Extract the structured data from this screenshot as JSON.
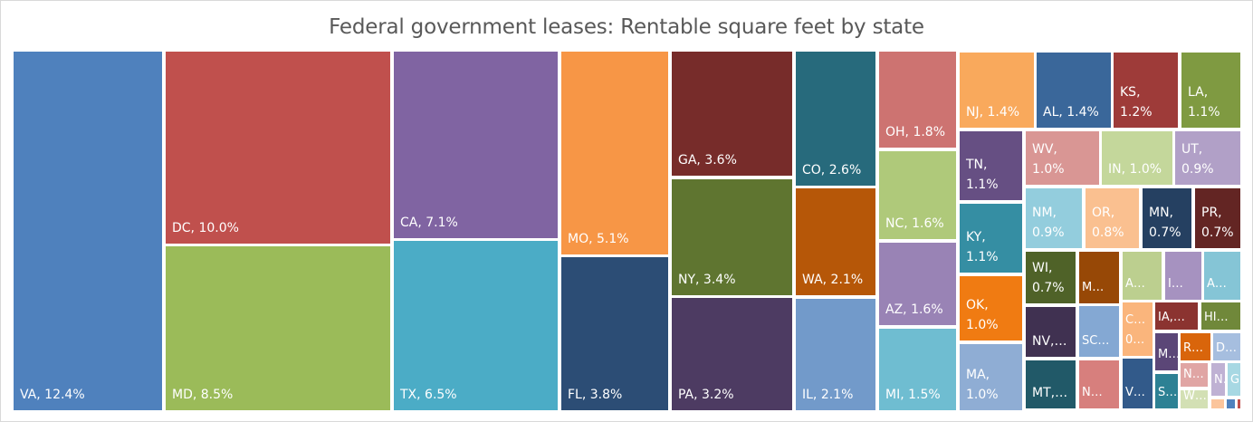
{
  "chart_data": {
    "type": "treemap",
    "title": "Federal government leases: Rentable square feet by state",
    "unit": "percent of rentable square feet",
    "items": [
      {
        "label": "VA",
        "value": 12.4,
        "text": "VA, 12.4%",
        "color": "#4f81bd"
      },
      {
        "label": "DC",
        "value": 10.0,
        "text": "DC, 10.0%",
        "color": "#c0504d"
      },
      {
        "label": "MD",
        "value": 8.5,
        "text": "MD, 8.5%",
        "color": "#9bbb59"
      },
      {
        "label": "CA",
        "value": 7.1,
        "text": "CA, 7.1%",
        "color": "#8064a2"
      },
      {
        "label": "TX",
        "value": 6.5,
        "text": "TX, 6.5%",
        "color": "#4bacc6"
      },
      {
        "label": "MO",
        "value": 5.1,
        "text": "MO, 5.1%",
        "color": "#f79646"
      },
      {
        "label": "FL",
        "value": 3.8,
        "text": "FL, 3.8%",
        "color": "#2c4d75"
      },
      {
        "label": "GA",
        "value": 3.6,
        "text": "GA, 3.6%",
        "color": "#772c2a"
      },
      {
        "label": "NY",
        "value": 3.4,
        "text": "NY, 3.4%",
        "color": "#5f7530"
      },
      {
        "label": "PA",
        "value": 3.2,
        "text": "PA, 3.2%",
        "color": "#4d3b62"
      },
      {
        "label": "CO",
        "value": 2.6,
        "text": "CO, 2.6%",
        "color": "#276a7c"
      },
      {
        "label": "WA",
        "value": 2.1,
        "text": "WA, 2.1%",
        "color": "#b65708"
      },
      {
        "label": "IL",
        "value": 2.1,
        "text": "IL, 2.1%",
        "color": "#729aca"
      },
      {
        "label": "OH",
        "value": 1.8,
        "text": "OH, 1.8%",
        "color": "#cd7371"
      },
      {
        "label": "NC",
        "value": 1.6,
        "text": "NC, 1.6%",
        "color": "#afc97a"
      },
      {
        "label": "AZ",
        "value": 1.6,
        "text": "AZ, 1.6%",
        "color": "#9983b5"
      },
      {
        "label": "MI",
        "value": 1.5,
        "text": "MI, 1.5%",
        "color": "#6fbdd1"
      },
      {
        "label": "NJ",
        "value": 1.4,
        "text": "NJ, 1.4%",
        "color": "#f9a95c"
      },
      {
        "label": "AL",
        "value": 1.4,
        "text": "AL, 1.4%",
        "color": "#3a679a"
      },
      {
        "label": "KS",
        "value": 1.2,
        "text": "KS,\n1.2%",
        "color": "#9e3b39"
      },
      {
        "label": "LA",
        "value": 1.1,
        "text": "LA,\n1.1%",
        "color": "#7f9a41"
      },
      {
        "label": "TN",
        "value": 1.1,
        "text": "TN,\n1.1%",
        "color": "#664f83"
      },
      {
        "label": "KY",
        "value": 1.1,
        "text": "KY,\n1.1%",
        "color": "#358ea3"
      },
      {
        "label": "OK",
        "value": 1.0,
        "text": "OK,\n1.0%",
        "color": "#f07b12"
      },
      {
        "label": "MA",
        "value": 1.0,
        "text": "MA,\n1.0%",
        "color": "#8fadd4"
      },
      {
        "label": "WV",
        "value": 1.0,
        "text": "WV,\n1.0%",
        "color": "#d99694"
      },
      {
        "label": "IN",
        "value": 1.0,
        "text": "IN, 1.0%",
        "color": "#c4d79b"
      },
      {
        "label": "UT",
        "value": 0.9,
        "text": "UT,\n0.9%",
        "color": "#b1a0c7"
      },
      {
        "label": "NM",
        "value": 0.9,
        "text": "NM,\n0.9%",
        "color": "#93cddd"
      },
      {
        "label": "OR",
        "value": 0.8,
        "text": "OR,\n0.8%",
        "color": "#fac090"
      },
      {
        "label": "MN",
        "value": 0.7,
        "text": "MN,\n0.7%",
        "color": "#254061"
      },
      {
        "label": "PR",
        "value": 0.7,
        "text": "PR,\n0.7%",
        "color": "#632523"
      },
      {
        "label": "WI",
        "value": 0.7,
        "text": "WI,\n0.7%",
        "color": "#4f6228"
      },
      {
        "label": "M…",
        "text": "M…",
        "color": "#974806"
      },
      {
        "label": "A…",
        "text": "A…",
        "color": "#bccf8f"
      },
      {
        "label": "I…",
        "text": "I…",
        "color": "#a692c0"
      },
      {
        "label": "A…",
        "text": "A…",
        "color": "#85c5d6"
      },
      {
        "label": "NV,…",
        "text": "NV,…",
        "color": "#403151"
      },
      {
        "label": "SC…",
        "text": "SC…",
        "color": "#84a8d3"
      },
      {
        "label": "C…",
        "text": "C…\n0…",
        "color": "#fab57c"
      },
      {
        "label": "IA,…",
        "text": "IA,…",
        "color": "#8b3330"
      },
      {
        "label": "HI…",
        "text": "HI…",
        "color": "#70883a"
      },
      {
        "label": "M…",
        "text": "M…",
        "color": "#5b4677"
      },
      {
        "label": "R…",
        "text": "R…",
        "color": "#d9650b"
      },
      {
        "label": "D…",
        "text": "D…",
        "color": "#a6bedf"
      },
      {
        "label": "MT,…",
        "text": "MT,…",
        "color": "#215968"
      },
      {
        "label": "N…",
        "text": "N…",
        "color": "#d77f7d"
      },
      {
        "label": "V…",
        "text": "V…",
        "color": "#325a8a"
      },
      {
        "label": "S…",
        "text": "S…",
        "color": "#2d8194"
      },
      {
        "label": "N…",
        "text": "N…",
        "color": "#e0a5a4"
      },
      {
        "label": "W…",
        "text": "W…",
        "color": "#d3e0b4"
      },
      {
        "label": "N…",
        "text": "N…",
        "color": "#bfb1d3"
      },
      {
        "label": "G…",
        "text": "G…",
        "color": "#a7d8e3"
      },
      {
        "label": "",
        "text": "",
        "color": "#fbc59c"
      },
      {
        "label": "",
        "text": "",
        "color": "#4f81bd"
      },
      {
        "label": "",
        "text": "",
        "color": "#c0504d"
      }
    ]
  }
}
